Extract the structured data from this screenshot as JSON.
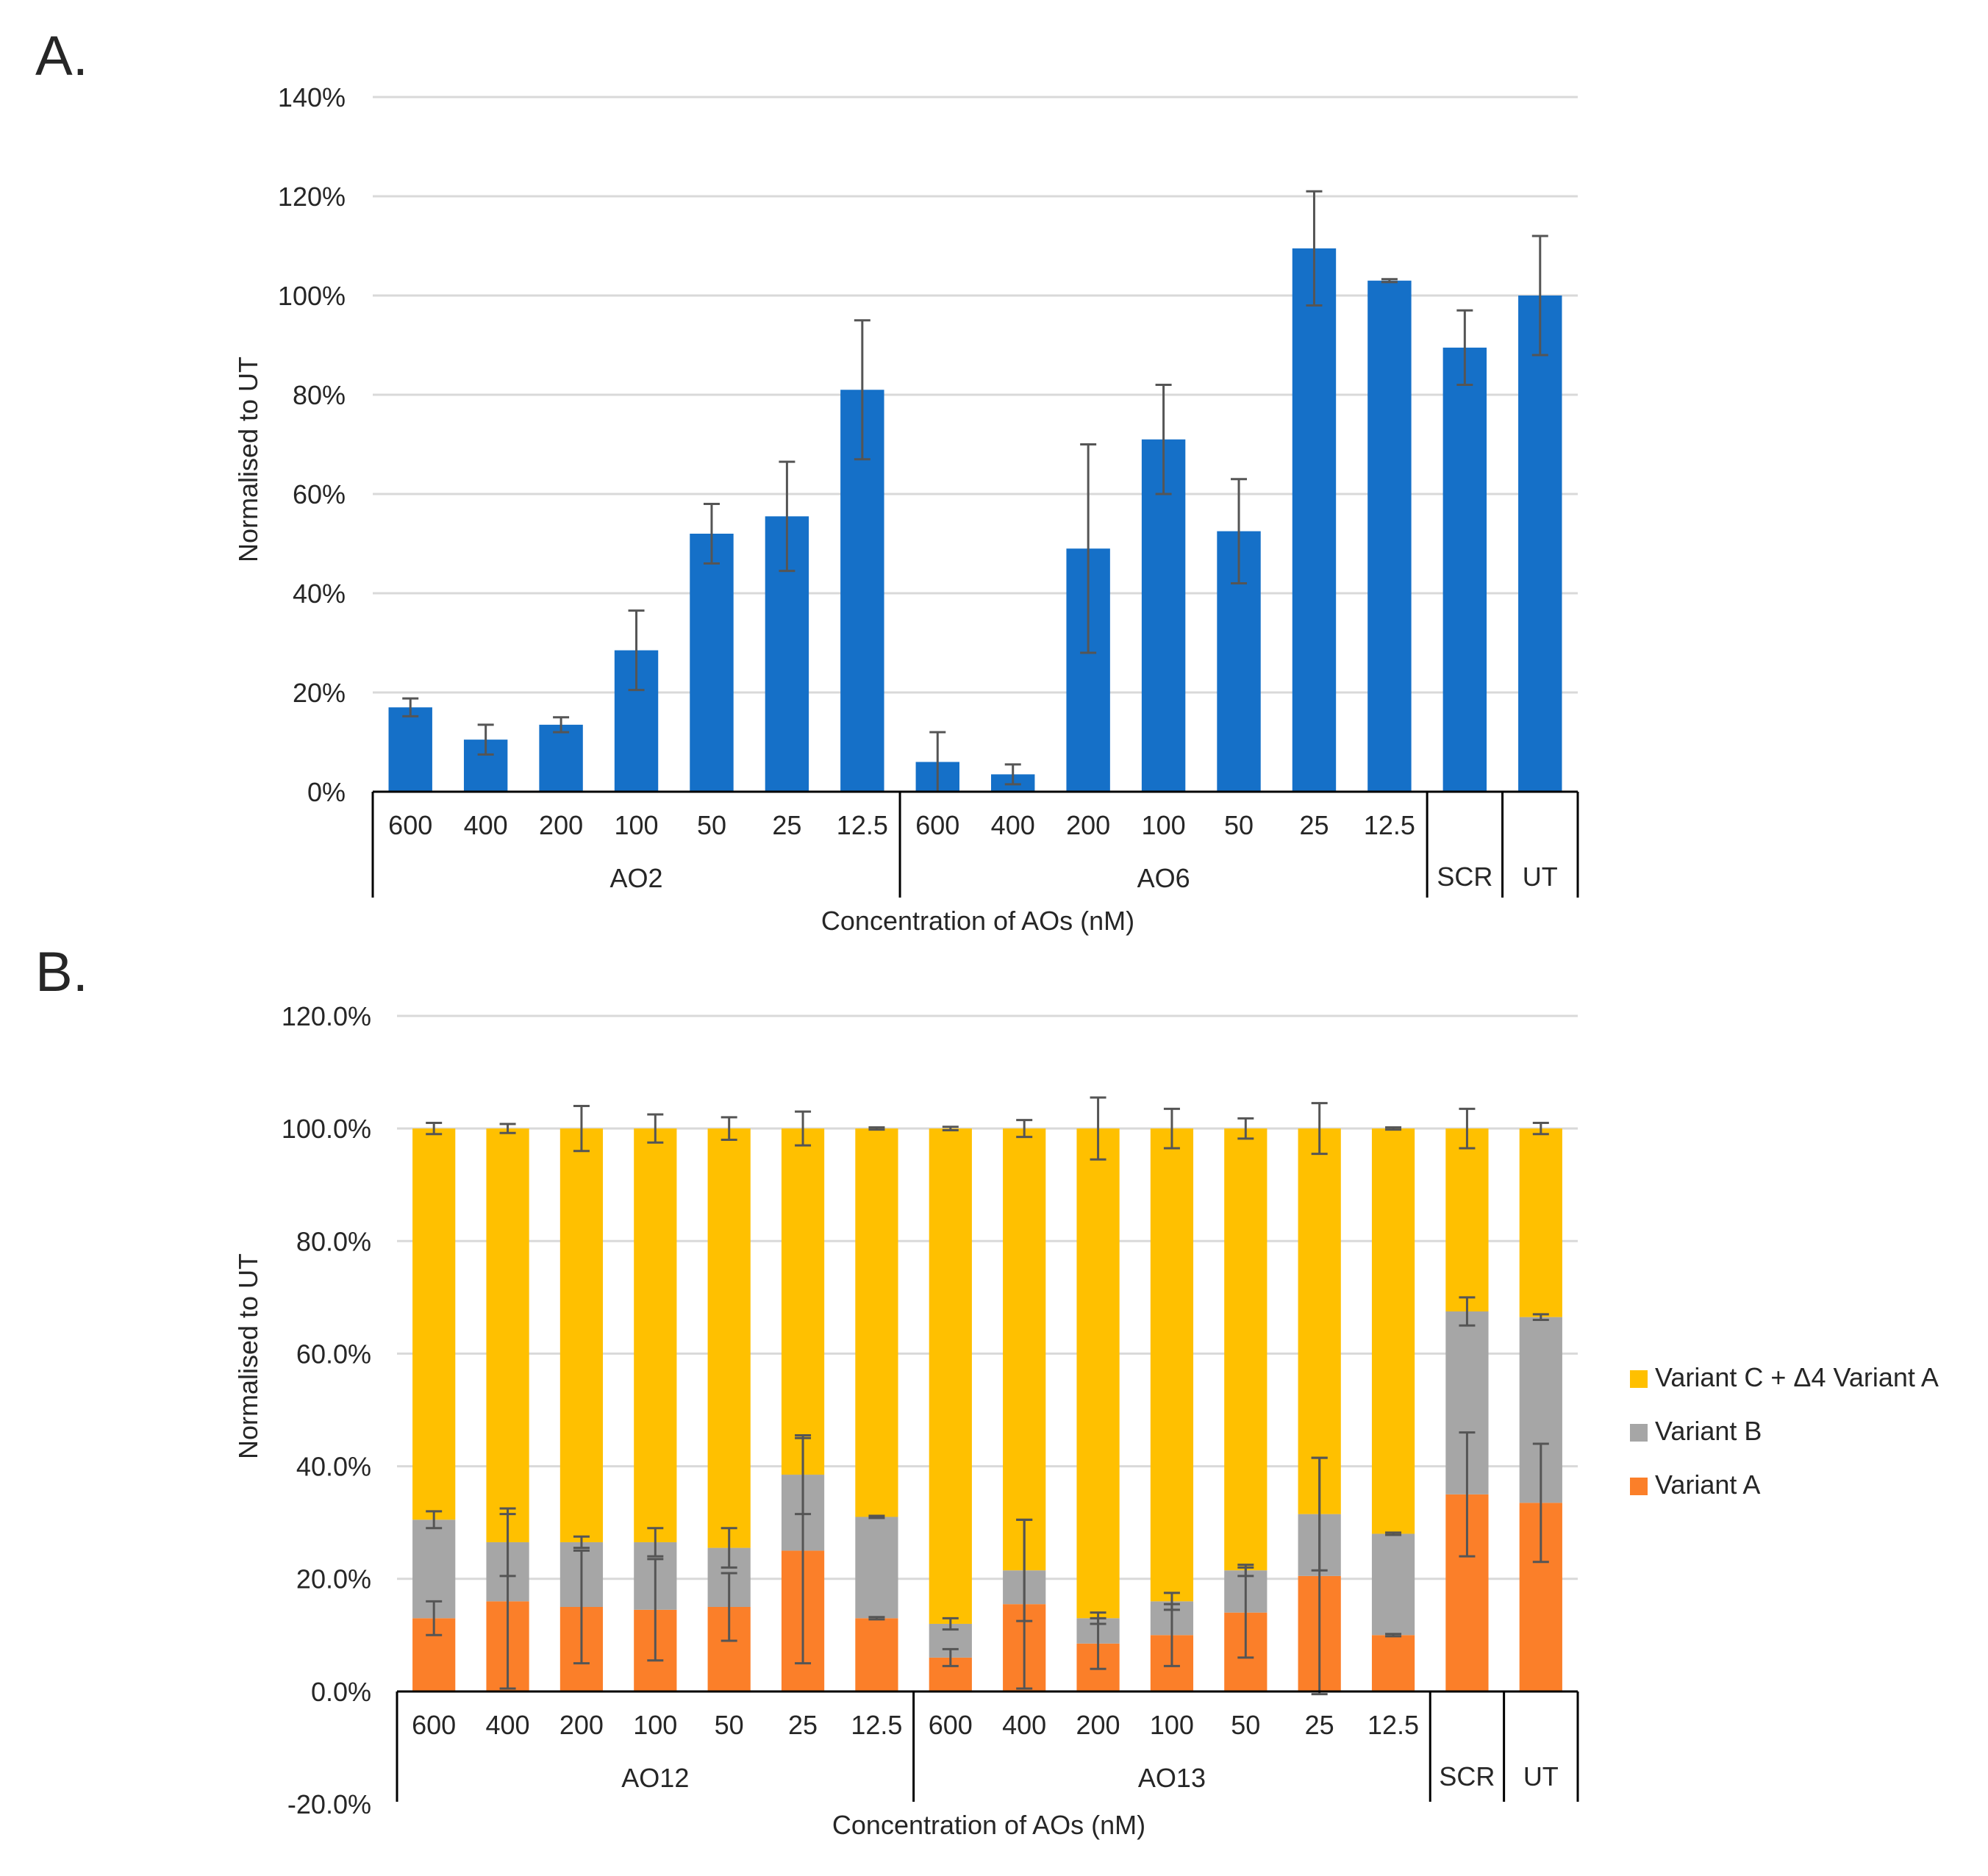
{
  "colors": {
    "bar_blue": "#1570C8",
    "variant_a": "#FB7F29",
    "variant_b": "#A6A6A6",
    "variant_c": "#FFC000",
    "grid": "#D9D9D9",
    "error_bar": "#555555",
    "axis": "#000000",
    "text": "#262626"
  },
  "chart_data": [
    {
      "panel": "A.",
      "type": "bar",
      "ylabel": "Normalised to UT",
      "xlabel": "Concentration of AOs (nM)",
      "ylim": [
        0,
        140
      ],
      "y_ticks": [
        0,
        20,
        40,
        60,
        80,
        100,
        120,
        140
      ],
      "y_tick_labels": [
        "0%",
        "20%",
        "40%",
        "60%",
        "80%",
        "100%",
        "120%",
        "140%"
      ],
      "grid": true,
      "categories": [
        "600",
        "400",
        "200",
        "100",
        "50",
        "25",
        "12.5",
        "600",
        "400",
        "200",
        "100",
        "50",
        "25",
        "12.5",
        "",
        ""
      ],
      "groups": [
        {
          "label": "AO2",
          "count": 7
        },
        {
          "label": "AO6",
          "count": 7
        },
        {
          "label": "SCR",
          "count": 1
        },
        {
          "label": "UT",
          "count": 1
        }
      ],
      "values": [
        17.0,
        10.5,
        13.5,
        28.5,
        52.0,
        55.5,
        81.0,
        6.0,
        3.5,
        49.0,
        71.0,
        52.5,
        109.5,
        103.0,
        89.5,
        100.0
      ],
      "errors": [
        1.8,
        3.0,
        1.5,
        8.0,
        6.0,
        11.0,
        14.0,
        6.0,
        2.0,
        21.0,
        11.0,
        10.5,
        11.5,
        0.3,
        7.5,
        12.0
      ]
    },
    {
      "panel": "B.",
      "type": "bar",
      "stacked": true,
      "ylabel": "Normalised to UT",
      "xlabel": "Concentration of AOs (nM)",
      "ylim": [
        -20,
        120
      ],
      "y_ticks": [
        -20,
        0,
        20,
        40,
        60,
        80,
        100,
        120
      ],
      "y_tick_labels": [
        "-20.0%",
        "0.0%",
        "20.0%",
        "40.0%",
        "60.0%",
        "80.0%",
        "100.0%",
        "120.0%"
      ],
      "grid": true,
      "legend_position": "right",
      "categories": [
        "600",
        "400",
        "200",
        "100",
        "50",
        "25",
        "12.5",
        "600",
        "400",
        "200",
        "100",
        "50",
        "25",
        "12.5",
        "",
        ""
      ],
      "groups": [
        {
          "label": "AO12",
          "count": 7
        },
        {
          "label": "AO13",
          "count": 7
        },
        {
          "label": "SCR",
          "count": 1
        },
        {
          "label": "UT",
          "count": 1
        }
      ],
      "series": [
        {
          "name": "Variant A",
          "values": [
            13.0,
            16.0,
            15.0,
            14.5,
            15.0,
            25.0,
            13.0,
            6.0,
            15.5,
            8.5,
            10.0,
            14.0,
            20.5,
            10.0,
            35.0,
            33.5
          ],
          "errors": [
            3.0,
            15.5,
            10.0,
            9.0,
            6.0,
            20.0,
            0.2,
            1.5,
            15.0,
            4.5,
            5.5,
            8.0,
            21.0,
            0.2,
            11.0,
            10.5
          ]
        },
        {
          "name": "Variant B",
          "values": [
            17.5,
            10.5,
            11.5,
            12.0,
            10.5,
            13.5,
            18.0,
            6.0,
            6.0,
            4.5,
            6.0,
            7.5,
            11.0,
            18.0,
            32.5,
            33.0
          ],
          "errors": [
            1.5,
            6.0,
            1.0,
            2.5,
            3.5,
            7.0,
            0.2,
            1.0,
            9.0,
            1.0,
            1.5,
            1.0,
            10.0,
            0.2,
            2.5,
            0.5
          ]
        },
        {
          "name": "Variant C + Δ4 Variant A",
          "values": [
            69.5,
            73.5,
            73.5,
            73.5,
            74.5,
            61.5,
            69.0,
            88.0,
            78.5,
            87.0,
            84.0,
            78.5,
            68.5,
            72.0,
            32.5,
            33.5
          ],
          "errors": [
            1.0,
            0.8,
            4.0,
            2.5,
            2.0,
            3.0,
            0.2,
            0.3,
            1.5,
            5.5,
            3.5,
            1.8,
            4.5,
            0.2,
            3.5,
            1.0
          ]
        }
      ]
    }
  ]
}
